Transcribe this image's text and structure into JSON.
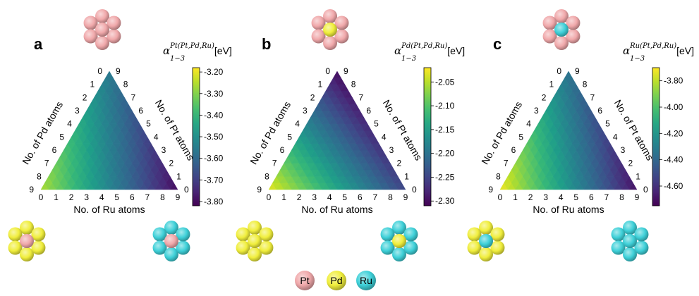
{
  "legend": [
    {
      "label": "Pt",
      "color": "#f0a8aa"
    },
    {
      "label": "Pd",
      "color": "#f0ee3c"
    },
    {
      "label": "Ru",
      "color": "#3ed0d8"
    }
  ],
  "chart_data": [
    {
      "type": "heatmap",
      "panel": "a",
      "colorbar_title": {
        "symbol": "α",
        "sub": "1−3",
        "sup": "Pt(Pt,Pd,Ru)",
        "unit": "[eV]"
      },
      "colorbar_ticks": [
        "-3.20",
        "-3.30",
        "-3.40",
        "-3.50",
        "-3.60",
        "-3.70",
        "-3.80"
      ],
      "colorbar_range": [
        -3.82,
        -3.18
      ],
      "corner_values": {
        "pd9": -3.26,
        "pt9": -3.56,
        "ru9": -3.8
      },
      "center_atom": "Pt",
      "xlabel": "No. of Ru atoms",
      "left_label": "No. of Pd atoms",
      "right_label": "No. of Pt atoms",
      "ticks": [
        "0",
        "1",
        "2",
        "3",
        "4",
        "5",
        "6",
        "7",
        "8",
        "9"
      ]
    },
    {
      "type": "heatmap",
      "panel": "b",
      "colorbar_title": {
        "symbol": "α",
        "sub": "1−3",
        "sup": "Pd(Pt,Pd,Ru)",
        "unit": "[eV]"
      },
      "colorbar_ticks": [
        "-2.05",
        "-2.10",
        "-2.15",
        "-2.20",
        "-2.25",
        "-2.30"
      ],
      "colorbar_range": [
        -2.31,
        -2.02
      ],
      "corner_values": {
        "pd9": -2.03,
        "pt9": -2.3,
        "ru9": -2.25
      },
      "center_atom": "Pd",
      "xlabel": "No. of Ru atoms",
      "left_label": "No. of Pd atoms",
      "right_label": "No. of Pt atoms",
      "ticks": [
        "0",
        "1",
        "2",
        "3",
        "4",
        "5",
        "6",
        "7",
        "8",
        "9"
      ]
    },
    {
      "type": "heatmap",
      "panel": "c",
      "colorbar_title": {
        "symbol": "α",
        "sub": "1−3",
        "sup": "Ru(Pt,Pd,Ru)",
        "unit": "[eV]"
      },
      "colorbar_ticks": [
        "-3.80",
        "-4.00",
        "-4.20",
        "-4.40",
        "-4.60"
      ],
      "colorbar_range": [
        -4.75,
        -3.7
      ],
      "corner_values": {
        "pd9": -3.72,
        "pt9": -4.35,
        "ru9": -4.7
      },
      "center_atom": "Ru",
      "xlabel": "No. of Ru atoms",
      "left_label": "No. of Pd atoms",
      "right_label": "No. of Pt atoms",
      "ticks": [
        "0",
        "1",
        "2",
        "3",
        "4",
        "5",
        "6",
        "7",
        "8",
        "9"
      ]
    }
  ]
}
